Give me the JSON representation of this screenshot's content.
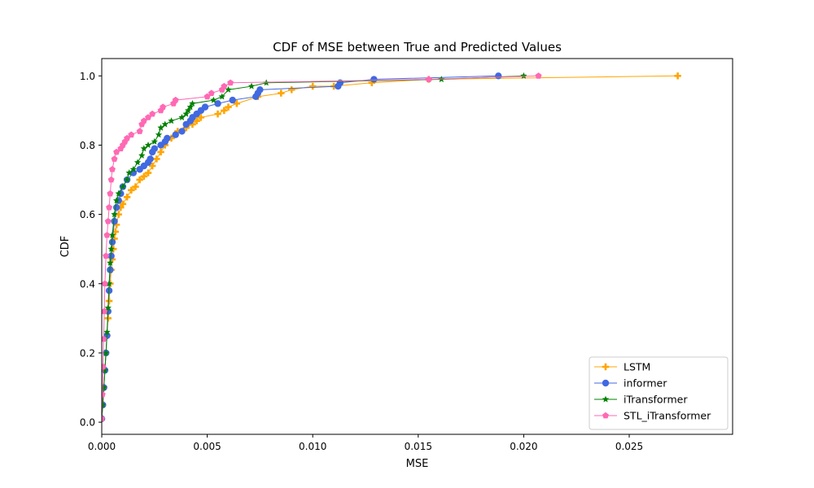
{
  "chart_data": {
    "type": "line",
    "title": "CDF of MSE between True and Predicted Values",
    "xlabel": "MSE",
    "ylabel": "CDF",
    "xlim": [
      0,
      0.0299
    ],
    "ylim": [
      -0.035,
      1.05
    ],
    "xticks": [
      0,
      0.005,
      0.01,
      0.015,
      0.02,
      0.025
    ],
    "xtick_labels": [
      "0.000",
      "0.005",
      "0.010",
      "0.015",
      "0.020",
      "0.025"
    ],
    "yticks": [
      0,
      0.2,
      0.4,
      0.6,
      0.8,
      1.0
    ],
    "ytick_labels": [
      "0.0",
      "0.2",
      "0.4",
      "0.6",
      "0.8",
      "1.0"
    ],
    "grid": false,
    "legend_position": "bottom-right",
    "series": [
      {
        "name": "LSTM",
        "color": "#FFA500",
        "marker": "plus",
        "points": [
          [
            0,
            0.01
          ],
          [
            5e-05,
            0.05
          ],
          [
            0.0001,
            0.1
          ],
          [
            0.00015,
            0.15
          ],
          [
            0.0002,
            0.2
          ],
          [
            0.00025,
            0.25
          ],
          [
            0.0003,
            0.3
          ],
          [
            0.00035,
            0.35
          ],
          [
            0.0004,
            0.4
          ],
          [
            0.00045,
            0.44
          ],
          [
            0.0005,
            0.47
          ],
          [
            0.00055,
            0.5
          ],
          [
            0.0006,
            0.53
          ],
          [
            0.00065,
            0.55
          ],
          [
            0.0007,
            0.57
          ],
          [
            0.0008,
            0.6
          ],
          [
            0.0009,
            0.62
          ],
          [
            0.001,
            0.63
          ],
          [
            0.0012,
            0.65
          ],
          [
            0.0014,
            0.67
          ],
          [
            0.0016,
            0.68
          ],
          [
            0.0018,
            0.7
          ],
          [
            0.002,
            0.71
          ],
          [
            0.0022,
            0.72
          ],
          [
            0.0024,
            0.74
          ],
          [
            0.0026,
            0.76
          ],
          [
            0.0028,
            0.78
          ],
          [
            0.003,
            0.8
          ],
          [
            0.0033,
            0.82
          ],
          [
            0.0036,
            0.84
          ],
          [
            0.004,
            0.85
          ],
          [
            0.0043,
            0.86
          ],
          [
            0.0045,
            0.87
          ],
          [
            0.0047,
            0.88
          ],
          [
            0.0055,
            0.89
          ],
          [
            0.0058,
            0.9
          ],
          [
            0.006,
            0.91
          ],
          [
            0.0064,
            0.92
          ],
          [
            0.0074,
            0.94
          ],
          [
            0.0085,
            0.95
          ],
          [
            0.009,
            0.96
          ],
          [
            0.01,
            0.97
          ],
          [
            0.011,
            0.97
          ],
          [
            0.0128,
            0.98
          ],
          [
            0.0155,
            0.99
          ],
          [
            0.0273,
            1.0
          ]
        ]
      },
      {
        "name": "informer",
        "color": "#4169E1",
        "marker": "circle",
        "points": [
          [
            0,
            0.01
          ],
          [
            5e-05,
            0.05
          ],
          [
            0.0001,
            0.1
          ],
          [
            0.00015,
            0.15
          ],
          [
            0.0002,
            0.2
          ],
          [
            0.00025,
            0.25
          ],
          [
            0.0003,
            0.32
          ],
          [
            0.00035,
            0.38
          ],
          [
            0.0004,
            0.44
          ],
          [
            0.00045,
            0.48
          ],
          [
            0.0005,
            0.52
          ],
          [
            0.0006,
            0.58
          ],
          [
            0.0007,
            0.62
          ],
          [
            0.0008,
            0.64
          ],
          [
            0.0009,
            0.66
          ],
          [
            0.001,
            0.68
          ],
          [
            0.0012,
            0.7
          ],
          [
            0.0015,
            0.72
          ],
          [
            0.0018,
            0.73
          ],
          [
            0.002,
            0.74
          ],
          [
            0.0022,
            0.75
          ],
          [
            0.0023,
            0.76
          ],
          [
            0.0024,
            0.78
          ],
          [
            0.0025,
            0.79
          ],
          [
            0.0028,
            0.8
          ],
          [
            0.003,
            0.81
          ],
          [
            0.0031,
            0.82
          ],
          [
            0.0035,
            0.83
          ],
          [
            0.0038,
            0.84
          ],
          [
            0.004,
            0.86
          ],
          [
            0.0042,
            0.87
          ],
          [
            0.0043,
            0.88
          ],
          [
            0.0045,
            0.89
          ],
          [
            0.0047,
            0.9
          ],
          [
            0.0049,
            0.91
          ],
          [
            0.0055,
            0.92
          ],
          [
            0.0062,
            0.93
          ],
          [
            0.0073,
            0.94
          ],
          [
            0.0074,
            0.95
          ],
          [
            0.0075,
            0.96
          ],
          [
            0.0112,
            0.97
          ],
          [
            0.0113,
            0.98
          ],
          [
            0.0129,
            0.99
          ],
          [
            0.0188,
            1.0
          ]
        ]
      },
      {
        "name": "iTransformer",
        "color": "#008000",
        "marker": "star",
        "points": [
          [
            0,
            0.01
          ],
          [
            5e-05,
            0.05
          ],
          [
            0.0001,
            0.1
          ],
          [
            0.00015,
            0.15
          ],
          [
            0.0002,
            0.2
          ],
          [
            0.00025,
            0.26
          ],
          [
            0.0003,
            0.33
          ],
          [
            0.00035,
            0.4
          ],
          [
            0.0004,
            0.46
          ],
          [
            0.00045,
            0.5
          ],
          [
            0.0005,
            0.54
          ],
          [
            0.0006,
            0.6
          ],
          [
            0.0007,
            0.64
          ],
          [
            0.0008,
            0.66
          ],
          [
            0.001,
            0.68
          ],
          [
            0.0012,
            0.7
          ],
          [
            0.0013,
            0.72
          ],
          [
            0.0015,
            0.73
          ],
          [
            0.0017,
            0.75
          ],
          [
            0.0019,
            0.77
          ],
          [
            0.002,
            0.79
          ],
          [
            0.0022,
            0.8
          ],
          [
            0.0025,
            0.81
          ],
          [
            0.0027,
            0.83
          ],
          [
            0.0028,
            0.85
          ],
          [
            0.003,
            0.86
          ],
          [
            0.0033,
            0.87
          ],
          [
            0.0038,
            0.88
          ],
          [
            0.004,
            0.89
          ],
          [
            0.0041,
            0.9
          ],
          [
            0.0042,
            0.91
          ],
          [
            0.0043,
            0.92
          ],
          [
            0.0053,
            0.93
          ],
          [
            0.0057,
            0.94
          ],
          [
            0.006,
            0.96
          ],
          [
            0.0071,
            0.97
          ],
          [
            0.0078,
            0.98
          ],
          [
            0.0161,
            0.99
          ],
          [
            0.02,
            1.0
          ]
        ]
      },
      {
        "name": "STL_iTransformer",
        "color": "#FF69B4",
        "marker": "pentagon",
        "points": [
          [
            0,
            0.01
          ],
          [
            3e-05,
            0.08
          ],
          [
            6e-05,
            0.16
          ],
          [
            9e-05,
            0.24
          ],
          [
            0.00012,
            0.32
          ],
          [
            0.00015,
            0.4
          ],
          [
            0.0002,
            0.48
          ],
          [
            0.00025,
            0.54
          ],
          [
            0.0003,
            0.58
          ],
          [
            0.00035,
            0.62
          ],
          [
            0.0004,
            0.66
          ],
          [
            0.00045,
            0.7
          ],
          [
            0.0005,
            0.73
          ],
          [
            0.0006,
            0.76
          ],
          [
            0.0007,
            0.78
          ],
          [
            0.0009,
            0.79
          ],
          [
            0.001,
            0.8
          ],
          [
            0.0011,
            0.81
          ],
          [
            0.0012,
            0.82
          ],
          [
            0.0014,
            0.83
          ],
          [
            0.0018,
            0.84
          ],
          [
            0.0019,
            0.86
          ],
          [
            0.002,
            0.87
          ],
          [
            0.0022,
            0.88
          ],
          [
            0.0024,
            0.89
          ],
          [
            0.0028,
            0.9
          ],
          [
            0.0029,
            0.91
          ],
          [
            0.0034,
            0.92
          ],
          [
            0.0035,
            0.93
          ],
          [
            0.005,
            0.94
          ],
          [
            0.0052,
            0.95
          ],
          [
            0.0057,
            0.96
          ],
          [
            0.0058,
            0.97
          ],
          [
            0.0061,
            0.98
          ],
          [
            0.0155,
            0.99
          ],
          [
            0.0207,
            1.0
          ]
        ]
      }
    ]
  }
}
